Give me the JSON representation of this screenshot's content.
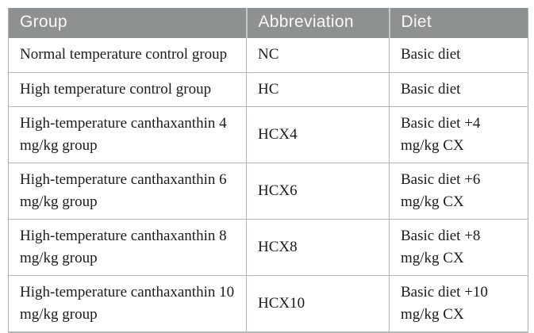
{
  "table": {
    "columns": [
      "Group",
      "Abbreviation",
      "Diet"
    ],
    "rows": [
      {
        "group": "Normal temperature control group",
        "abbreviation": "NC",
        "diet": "Basic diet"
      },
      {
        "group": "High temperature control group",
        "abbreviation": "HC",
        "diet": "Basic diet"
      },
      {
        "group": "High-temperature canthaxanthin 4 mg/kg group",
        "abbreviation": "HCX4",
        "diet": "Basic diet +4 mg/kg CX"
      },
      {
        "group": "High-temperature canthaxanthin 6 mg/kg group",
        "abbreviation": "HCX6",
        "diet": "Basic diet +6 mg/kg CX"
      },
      {
        "group": "High-temperature canthaxanthin 8 mg/kg group",
        "abbreviation": "HCX8",
        "diet": "Basic diet +8 mg/kg CX"
      },
      {
        "group": "High-temperature canthaxanthin 10 mg/kg group",
        "abbreviation": "HCX10",
        "diet": "Basic diet +10 mg/kg CX"
      }
    ]
  },
  "colors": {
    "header_background": "#8d9192",
    "header_text": "#f8f8f8",
    "grid_line": "#b2b7b7",
    "outer_border": "#a9aeae",
    "body_text": "#1b1b1b",
    "page_background": "#ffffff"
  }
}
